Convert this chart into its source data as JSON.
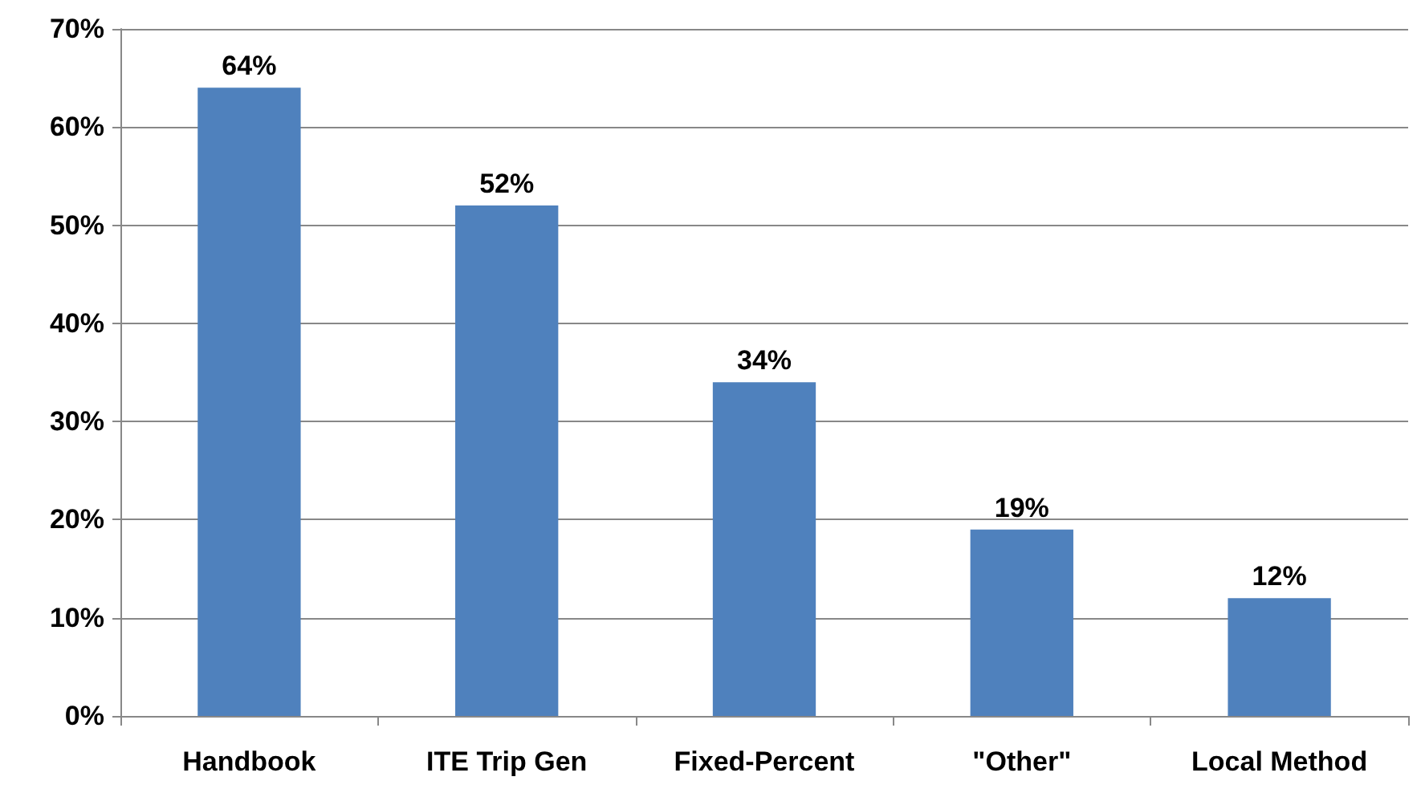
{
  "chart_data": {
    "type": "bar",
    "categories": [
      "Handbook",
      "ITE Trip Gen",
      "Fixed-Percent",
      "\"Other\"",
      "Local Method"
    ],
    "values": [
      64,
      52,
      34,
      19,
      12
    ],
    "value_labels": [
      "64%",
      "52%",
      "34%",
      "19%",
      "12%"
    ],
    "color": "#4f81bd",
    "ylim": [
      0,
      70
    ],
    "yticks": [
      {
        "value": 0,
        "label": "0%"
      },
      {
        "value": 10,
        "label": "10%"
      },
      {
        "value": 20,
        "label": "20%"
      },
      {
        "value": 30,
        "label": "30%"
      },
      {
        "value": 40,
        "label": "40%"
      },
      {
        "value": 50,
        "label": "50%"
      },
      {
        "value": 60,
        "label": "60%"
      },
      {
        "value": 70,
        "label": "70%"
      }
    ],
    "grid": "y"
  }
}
